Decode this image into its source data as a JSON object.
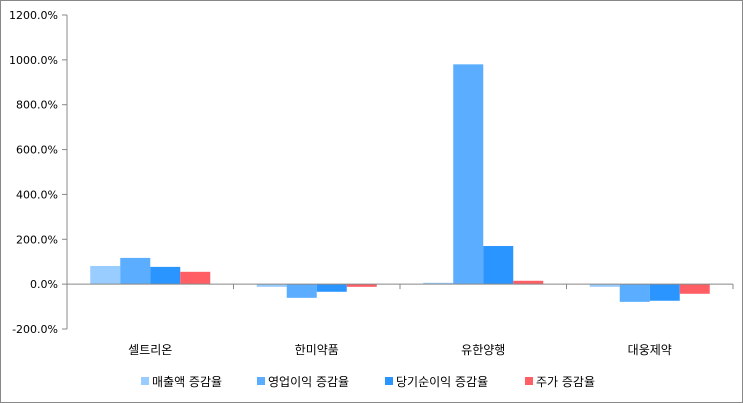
{
  "chart_data": {
    "type": "bar",
    "title": "",
    "xlabel": "",
    "ylabel": "",
    "categories": [
      "셀트리온",
      "한미약품",
      "유한양행",
      "대웅제약"
    ],
    "series": [
      {
        "name": "매출액 증감율",
        "color": "#99ccff",
        "values": [
          81,
          -12,
          6,
          -12
        ]
      },
      {
        "name": "영업이익 증감율",
        "color": "#5aadff",
        "values": [
          117,
          -61,
          980,
          -79
        ]
      },
      {
        "name": "당기순이익 증감율",
        "color": "#2a94ff",
        "values": [
          77,
          -34,
          170,
          -74
        ]
      },
      {
        "name": "주가 증감율",
        "color": "#ff5f64",
        "values": [
          55,
          -12,
          15,
          -43
        ]
      }
    ],
    "ylim": [
      -200,
      1200
    ],
    "yticks": [
      -200,
      0,
      200,
      400,
      600,
      800,
      1000,
      1200
    ],
    "ytick_labels": [
      "-200.0%",
      "0.0%",
      "200.0%",
      "400.0%",
      "600.0%",
      "800.0%",
      "1000.0%",
      "1200.0%"
    ],
    "grid": false,
    "legend": "bottom"
  }
}
